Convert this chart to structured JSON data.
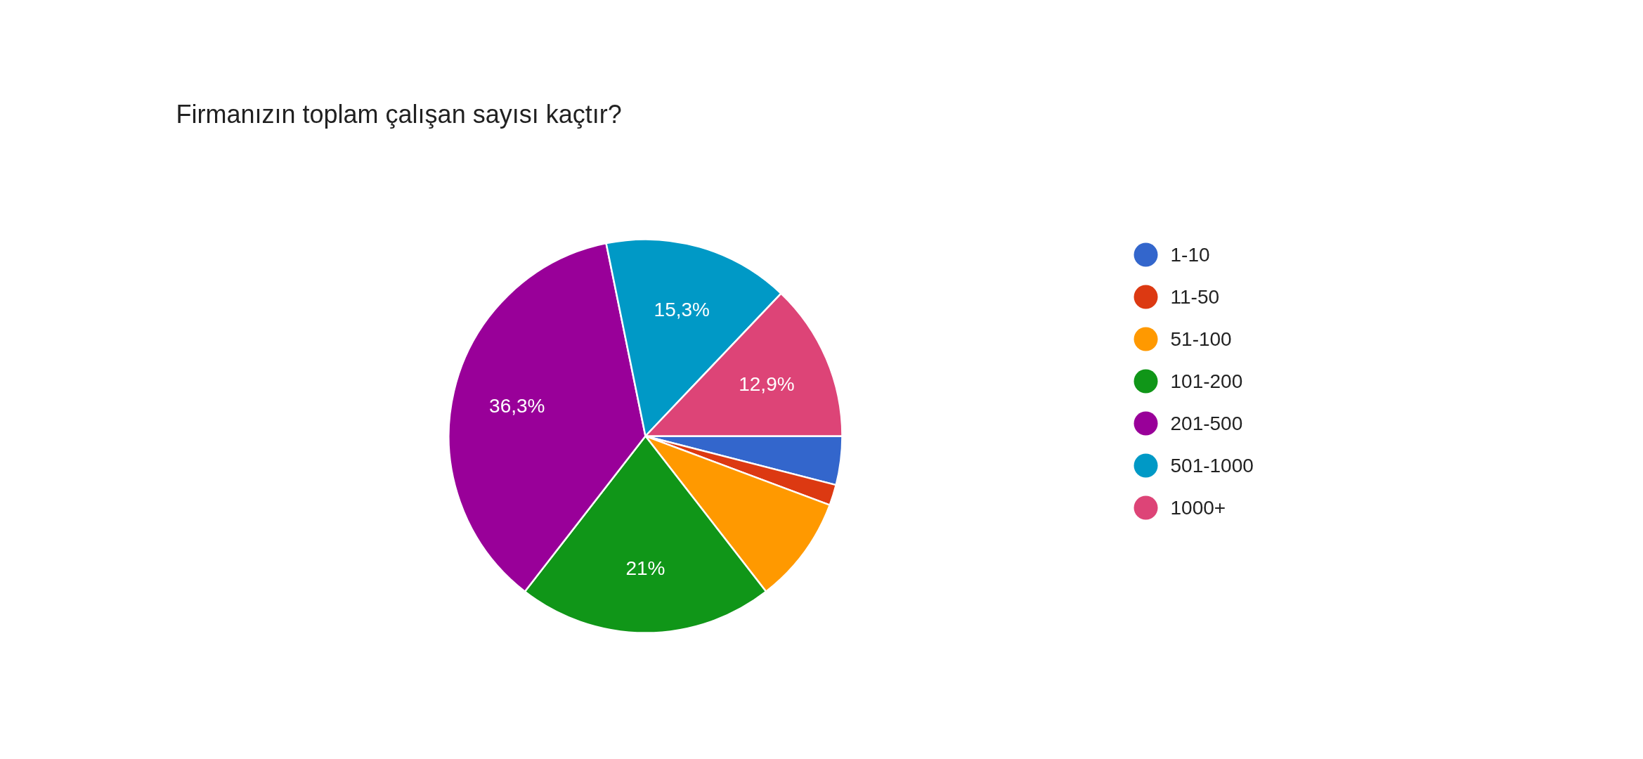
{
  "chart_data": {
    "type": "pie",
    "title": "Firmanızın toplam çalışan sayısı kaçtır?",
    "categories": [
      "1-10",
      "11-50",
      "51-100",
      "101-200",
      "201-500",
      "501-1000",
      "1000+"
    ],
    "values": [
      4.0,
      1.7,
      8.8,
      21,
      36.3,
      15.3,
      12.9
    ],
    "colors": [
      "#3366cc",
      "#dc3912",
      "#ff9900",
      "#109618",
      "#990099",
      "#0099c6",
      "#dd4477"
    ],
    "value_labels": [
      null,
      null,
      null,
      "21%",
      "36,3%",
      "15,3%",
      "12,9%"
    ],
    "legend": "right"
  }
}
